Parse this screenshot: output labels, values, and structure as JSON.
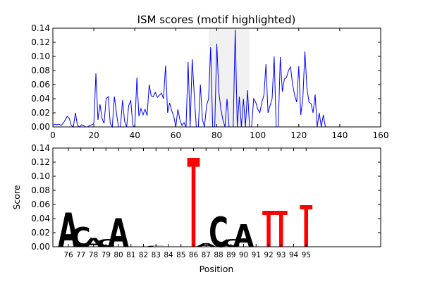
{
  "chart_data": [
    {
      "type": "line",
      "title": "ISM scores (motif highlighted)",
      "xlabel": "",
      "ylabel": "",
      "xlim": [
        0,
        160
      ],
      "ylim": [
        0,
        0.14
      ],
      "xticks": [
        0,
        20,
        40,
        60,
        80,
        100,
        120,
        140,
        160
      ],
      "yticks": [
        0.0,
        0.02,
        0.04,
        0.06,
        0.08,
        0.1,
        0.12,
        0.14
      ],
      "ytick_labels": [
        "0.00",
        "0.02",
        "0.04",
        "0.06",
        "0.08",
        "0.10",
        "0.12",
        "0.14"
      ],
      "highlight_span": [
        76,
        96
      ],
      "line_color": "#0000ff",
      "series": [
        {
          "x": [
            0,
            1,
            2,
            3,
            4,
            5,
            6,
            7,
            8,
            9,
            10,
            11,
            12,
            13,
            14,
            15,
            16,
            17,
            18,
            19,
            20,
            21,
            22,
            23,
            24,
            25,
            26,
            27,
            28,
            29,
            30,
            31,
            32,
            33,
            34,
            35,
            36,
            37,
            38,
            39,
            40,
            41,
            42,
            43,
            44,
            45,
            46,
            47,
            48,
            49,
            50,
            51,
            52,
            53,
            54,
            55,
            56,
            57,
            58,
            59,
            60,
            61,
            62,
            63,
            64,
            65,
            66,
            67,
            68,
            69,
            70,
            71,
            72,
            73,
            74,
            75,
            76,
            77,
            78,
            79,
            80,
            81,
            82,
            83,
            84,
            85,
            86,
            87,
            88,
            89,
            90,
            91,
            92,
            93,
            94,
            95,
            96,
            97,
            98,
            99,
            100,
            101,
            102,
            103,
            104,
            105,
            106,
            107,
            108,
            109,
            110,
            111,
            112,
            113,
            114,
            115,
            116,
            117,
            118,
            119,
            120,
            121,
            122,
            123,
            124,
            125,
            126,
            127,
            128,
            129,
            130,
            131,
            132,
            133,
            134,
            135,
            136,
            137,
            138,
            139,
            140,
            141,
            142,
            143,
            144,
            145
          ],
          "values": [
            0.002,
            0.004,
            0.003,
            0.004,
            0.002,
            0.005,
            0.01,
            0.015,
            0.012,
            0.002,
            0.0,
            0.02,
            0.002,
            0.0,
            0.003,
            0.002,
            0.0,
            0.0,
            0.002,
            0.003,
            0.005,
            0.076,
            0.01,
            0.032,
            0.012,
            0.005,
            0.04,
            0.043,
            0.005,
            0.0,
            0.043,
            0.02,
            0.0,
            0.0,
            0.038,
            0.008,
            0.0,
            0.03,
            0.038,
            0.002,
            0.0,
            0.07,
            0.015,
            0.026,
            0.017,
            0.025,
            0.016,
            0.06,
            0.044,
            0.043,
            0.049,
            0.042,
            0.045,
            0.048,
            0.04,
            0.087,
            0.02,
            0.034,
            0.023,
            0.015,
            0.0,
            0.025,
            0.01,
            0.002,
            0.006,
            0.0,
            0.092,
            0.0,
            0.096,
            0.045,
            0.0,
            0.0,
            0.06,
            0.01,
            0.0,
            0.03,
            0.04,
            0.113,
            0.0,
            0.0,
            0.118,
            0.05,
            0.025,
            0.01,
            0.0,
            0.04,
            0.0,
            0.0,
            0.0,
            0.138,
            0.0,
            0.043,
            0.0,
            0.04,
            0.0,
            0.052,
            0.0,
            0.0,
            0.04,
            0.035,
            0.025,
            0.02,
            0.035,
            0.045,
            0.089,
            0.02,
            0.03,
            0.04,
            0.1,
            0.0,
            0.0,
            0.099,
            0.05,
            0.068,
            0.07,
            0.08,
            0.085,
            0.06,
            0.045,
            0.035,
            0.086,
            0.017,
            0.04,
            0.107,
            0.055,
            0.035,
            0.033,
            0.02,
            0.046,
            0.0,
            0.02,
            0.0,
            0.017,
            0.0,
            0.0,
            0.0,
            0.0,
            0.0,
            0.0,
            0.0,
            0.0,
            0.0,
            0.0,
            0.0,
            0.0,
            0.0
          ]
        }
      ]
    },
    {
      "type": "bar",
      "subtype": "sequence-logo",
      "title": "",
      "xlabel": "Position",
      "ylabel": "Score",
      "ylim": [
        0,
        0.14
      ],
      "yticks": [
        0.0,
        0.02,
        0.04,
        0.06,
        0.08,
        0.1,
        0.12,
        0.14
      ],
      "ytick_labels": [
        "0.00",
        "0.02",
        "0.04",
        "0.06",
        "0.08",
        "0.10",
        "0.12",
        "0.14"
      ],
      "categories": [
        "76",
        "77",
        "78",
        "79",
        "80",
        "81",
        "82",
        "83",
        "84",
        "85",
        "86",
        "87",
        "88",
        "89",
        "90",
        "91",
        "92",
        "93",
        "94",
        "95"
      ],
      "letters": [
        "A",
        "C",
        "A",
        "C",
        "A",
        "",
        "",
        "C",
        "",
        "",
        "T",
        "A",
        "C",
        "C",
        "A",
        "",
        "T",
        "T",
        "",
        "T"
      ],
      "values": [
        0.048,
        0.028,
        0.012,
        0.011,
        0.04,
        0.0,
        0.0,
        0.001,
        0.0,
        0.0,
        0.126,
        0.005,
        0.043,
        0.011,
        0.032,
        0.0,
        0.051,
        0.051,
        0.0,
        0.059
      ],
      "letter_colors": {
        "A": "#008000",
        "C": "#0000ff",
        "G": "#ffa500",
        "T": "#ff0000"
      }
    }
  ]
}
